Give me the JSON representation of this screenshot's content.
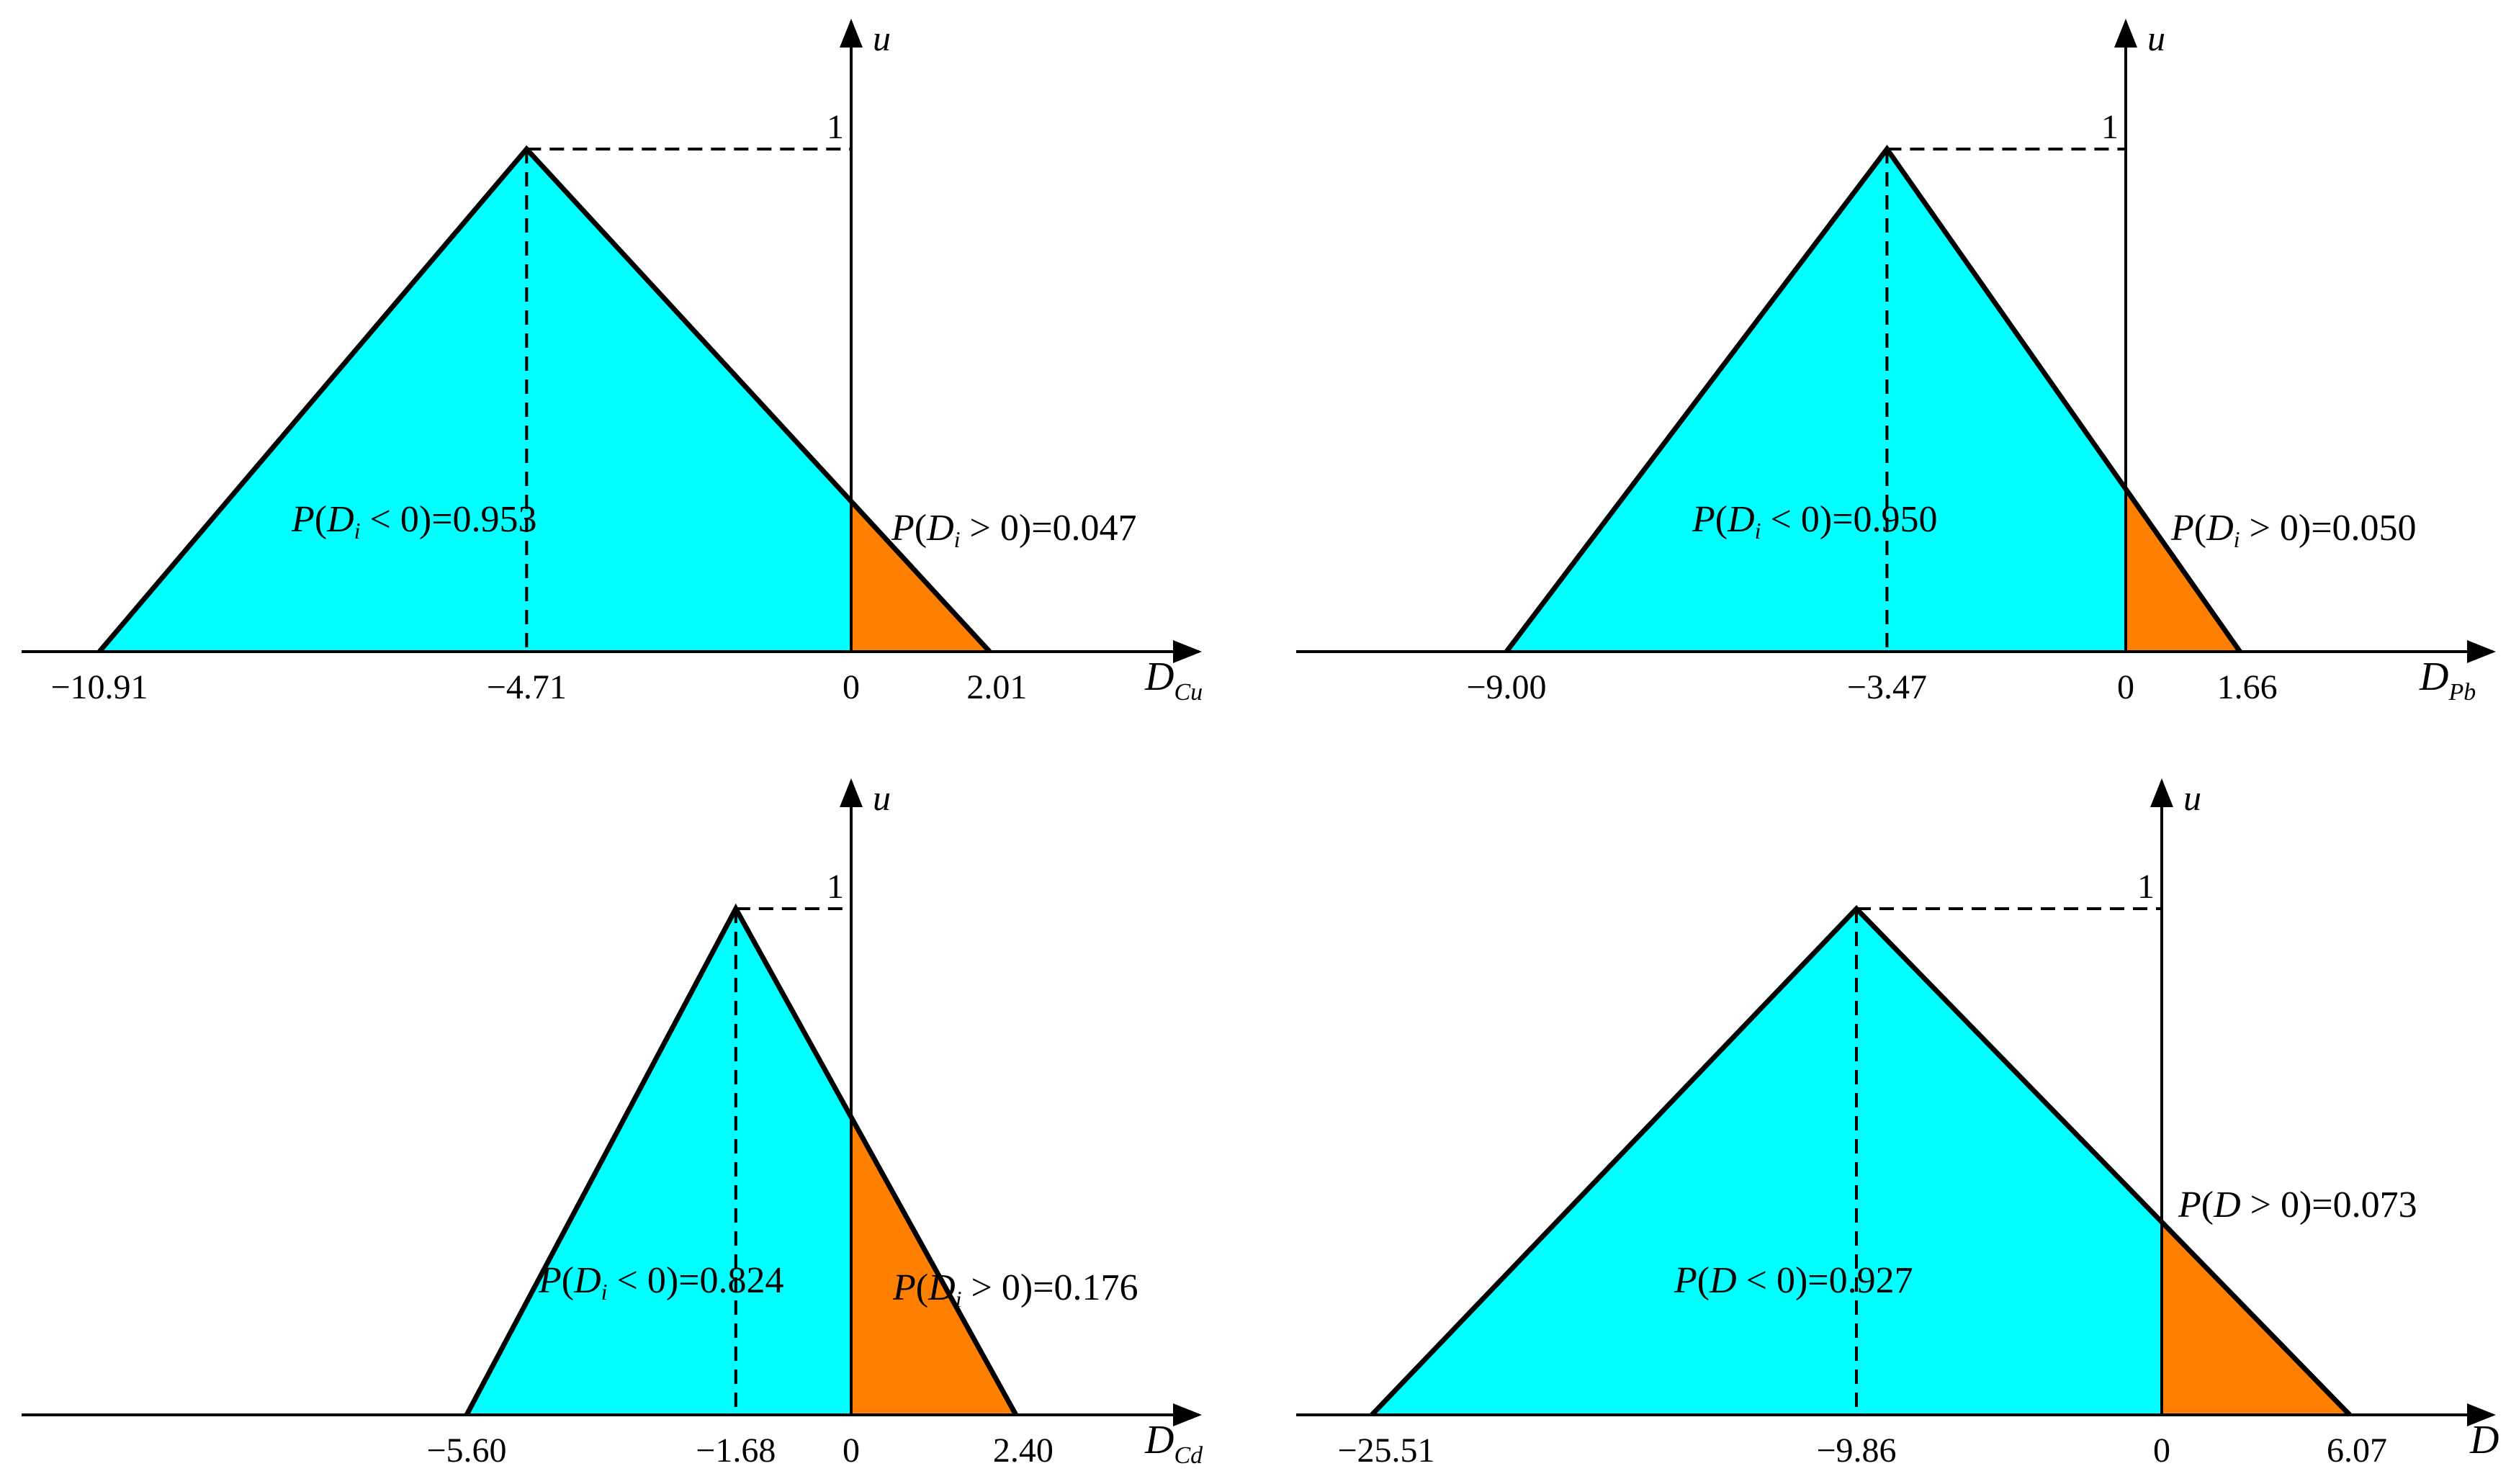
{
  "chart_data": [
    {
      "type": "area",
      "x_axis_label": "D",
      "x_axis_subscript": "Cu",
      "y_axis_label": "u",
      "peak_u_label": "1",
      "triangle": {
        "left": -10.91,
        "mode": -4.71,
        "right": 2.01
      },
      "ticks": [
        {
          "value": -10.91,
          "label": "−10.91"
        },
        {
          "value": -4.71,
          "label": "−4.71"
        },
        {
          "value": 0,
          "label": "0"
        },
        {
          "value": 2.01,
          "label": "2.01"
        }
      ],
      "regions": [
        {
          "name": "D<0",
          "color": "#00ffff",
          "probability": 0.953
        },
        {
          "name": "D>0",
          "color": "#ff8000",
          "probability": 0.047
        }
      ],
      "annotations": {
        "neg": {
          "var": "D",
          "sub": "i",
          "op": "<",
          "zero": "0",
          "value": "0.953"
        },
        "pos": {
          "var": "D",
          "sub": "i",
          "op": ">",
          "zero": "0",
          "value": "0.047"
        }
      }
    },
    {
      "type": "area",
      "x_axis_label": "D",
      "x_axis_subscript": "Pb",
      "y_axis_label": "u",
      "peak_u_label": "1",
      "triangle": {
        "left": -9.0,
        "mode": -3.47,
        "right": 1.66
      },
      "ticks": [
        {
          "value": -9.0,
          "label": "−9.00"
        },
        {
          "value": -3.47,
          "label": "−3.47"
        },
        {
          "value": 0,
          "label": "0"
        },
        {
          "value": 1.66,
          "label": "1.66"
        }
      ],
      "regions": [
        {
          "name": "D<0",
          "color": "#00ffff",
          "probability": 0.95
        },
        {
          "name": "D>0",
          "color": "#ff8000",
          "probability": 0.05
        }
      ],
      "annotations": {
        "neg": {
          "var": "D",
          "sub": "i",
          "op": "<",
          "zero": "0",
          "value": "0.950"
        },
        "pos": {
          "var": "D",
          "sub": "i",
          "op": ">",
          "zero": "0",
          "value": "0.050"
        }
      }
    },
    {
      "type": "area",
      "x_axis_label": "D",
      "x_axis_subscript": "Cd",
      "y_axis_label": "u",
      "peak_u_label": "1",
      "triangle": {
        "left": -5.6,
        "mode": -1.68,
        "right": 2.4
      },
      "ticks": [
        {
          "value": -5.6,
          "label": "−5.60"
        },
        {
          "value": -1.68,
          "label": "−1.68"
        },
        {
          "value": 0,
          "label": "0"
        },
        {
          "value": 2.4,
          "label": "2.40"
        }
      ],
      "regions": [
        {
          "name": "D<0",
          "color": "#00ffff",
          "probability": 0.824
        },
        {
          "name": "D>0",
          "color": "#ff8000",
          "probability": 0.176
        }
      ],
      "annotations": {
        "neg": {
          "var": "D",
          "sub": "i",
          "op": "<",
          "zero": "0",
          "value": "0.824"
        },
        "pos": {
          "var": "D",
          "sub": "i",
          "op": ">",
          "zero": "0",
          "value": "0.176"
        }
      }
    },
    {
      "type": "area",
      "x_axis_label": "D",
      "x_axis_subscript": "",
      "y_axis_label": "u",
      "peak_u_label": "1",
      "triangle": {
        "left": -25.51,
        "mode": -9.86,
        "right": 6.07
      },
      "ticks": [
        {
          "value": -25.51,
          "label": "−25.51"
        },
        {
          "value": -9.86,
          "label": "−9.86"
        },
        {
          "value": 0,
          "label": "0"
        },
        {
          "value": 6.07,
          "label": "6.07"
        }
      ],
      "regions": [
        {
          "name": "D<0",
          "color": "#00ffff",
          "probability": 0.927
        },
        {
          "name": "D>0",
          "color": "#ff8000",
          "probability": 0.073
        }
      ],
      "annotations": {
        "neg": {
          "var": "D",
          "sub": "",
          "op": "<",
          "zero": "0",
          "value": "0.927"
        },
        "pos": {
          "var": "D",
          "sub": "",
          "op": ">",
          "zero": "0",
          "value": "0.073"
        }
      }
    }
  ]
}
